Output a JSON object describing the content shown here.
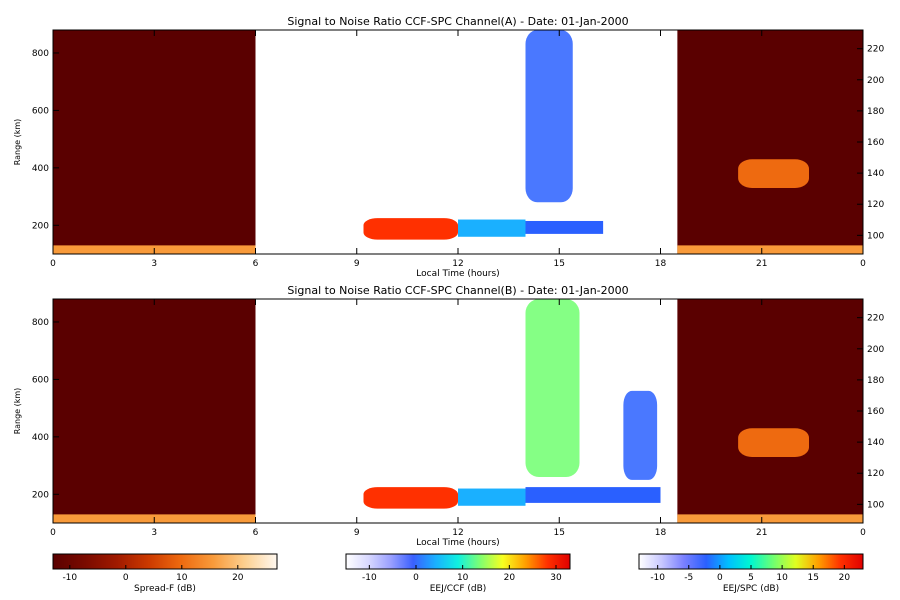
{
  "colors": {
    "spread_f": [
      "#5a0000",
      "#7a0a00",
      "#a01a00",
      "#cc3a00",
      "#ee6a10",
      "#f89a3a",
      "#fcd090",
      "#fff8f0"
    ],
    "eej_ccf": [
      "#ffffff",
      "#d8d8ff",
      "#9aa0ff",
      "#3a60ff",
      "#1ab0ff",
      "#10f0e0",
      "#80ff70",
      "#f8ff20",
      "#ffa000",
      "#ff3000",
      "#e00000"
    ],
    "eej_spc": [
      "#ffffff",
      "#c8c8ff",
      "#7a80ff",
      "#2a60ff",
      "#00c0ff",
      "#00f8d0",
      "#70ff70",
      "#e0ff20",
      "#ffa000",
      "#ff3000",
      "#e00000"
    ],
    "axis": "#000000"
  },
  "chart_data": [
    {
      "type": "heatmap",
      "title": "Signal to Noise Ratio CCF-SPC Channel(A) - Date: 01-Jan-2000",
      "xlabel": "Local Time (hours)",
      "ylabel": "Range (km)",
      "x_ticks": [
        "0",
        "3",
        "6",
        "9",
        "12",
        "15",
        "18",
        "21",
        "0"
      ],
      "y_ticks_left": [
        "200",
        "400",
        "600",
        "800"
      ],
      "y_ticks_right": [
        "100",
        "120",
        "140",
        "160",
        "180",
        "200",
        "220"
      ],
      "xlim": [
        0,
        24
      ],
      "ylim_left": [
        100,
        880
      ],
      "ylim_right": [
        88,
        232
      ],
      "regions": [
        {
          "name": "Spread-F night",
          "x": [
            0,
            6
          ],
          "range_km": [
            100,
            880
          ],
          "background_db": -13
        },
        {
          "name": "Spread-F night",
          "x": [
            18.5,
            24
          ],
          "range_km": [
            100,
            880
          ],
          "background_db": -13
        },
        {
          "name": "E-layer echo",
          "x": [
            0,
            6
          ],
          "range_km": [
            100,
            130
          ],
          "value_db": 18
        },
        {
          "name": "E-layer echo",
          "x": [
            18.5,
            24
          ],
          "range_km": [
            100,
            130
          ],
          "value_db": 18
        },
        {
          "name": "Spread-F patch",
          "x": [
            20.3,
            22.4
          ],
          "range_km": [
            330,
            430
          ],
          "value_db": 12
        },
        {
          "name": "EEJ/CCF strong echo",
          "x": [
            9.2,
            12
          ],
          "range_km": [
            150,
            225
          ],
          "value_db": 30
        },
        {
          "name": "EEJ/CCF echo",
          "x": [
            12,
            14
          ],
          "range_km": [
            160,
            220
          ],
          "value_db": 3
        },
        {
          "name": "EEJ/SPC plume",
          "x": [
            14,
            15.4
          ],
          "range_km": [
            280,
            880
          ],
          "value_db": -2
        },
        {
          "name": "EEJ/SPC band",
          "x": [
            14,
            16.3
          ],
          "range_km": [
            170,
            215
          ],
          "value_db": -3
        }
      ]
    },
    {
      "type": "heatmap",
      "title": "Signal to Noise Ratio CCF-SPC Channel(B) - Date: 01-Jan-2000",
      "xlabel": "Local Time (hours)",
      "ylabel": "Range (km)",
      "x_ticks": [
        "0",
        "3",
        "6",
        "9",
        "12",
        "15",
        "18",
        "21",
        "0"
      ],
      "y_ticks_left": [
        "200",
        "400",
        "600",
        "800"
      ],
      "y_ticks_right": [
        "100",
        "120",
        "140",
        "160",
        "180",
        "200",
        "220"
      ],
      "xlim": [
        0,
        24
      ],
      "ylim_left": [
        100,
        880
      ],
      "ylim_right": [
        88,
        232
      ],
      "regions": [
        {
          "name": "Spread-F night",
          "x": [
            0,
            6
          ],
          "range_km": [
            100,
            880
          ],
          "background_db": -13
        },
        {
          "name": "Spread-F night",
          "x": [
            18.5,
            24
          ],
          "range_km": [
            100,
            880
          ],
          "background_db": -13
        },
        {
          "name": "E-layer echo",
          "x": [
            0,
            6
          ],
          "range_km": [
            100,
            130
          ],
          "value_db": 18
        },
        {
          "name": "E-layer echo",
          "x": [
            18.5,
            24
          ],
          "range_km": [
            100,
            130
          ],
          "value_db": 18
        },
        {
          "name": "Spread-F patch",
          "x": [
            20.3,
            22.4
          ],
          "range_km": [
            330,
            430
          ],
          "value_db": 12
        },
        {
          "name": "EEJ/CCF strong echo",
          "x": [
            9.2,
            12
          ],
          "range_km": [
            150,
            225
          ],
          "value_db": 30
        },
        {
          "name": "EEJ/CCF echo",
          "x": [
            12,
            14
          ],
          "range_km": [
            160,
            220
          ],
          "value_db": 3
        },
        {
          "name": "EEJ/SPC plume",
          "x": [
            14,
            15.6
          ],
          "range_km": [
            260,
            880
          ],
          "value_db": 8
        },
        {
          "name": "EEJ/SPC bubble",
          "x": [
            16.9,
            17.9
          ],
          "range_km": [
            250,
            560
          ],
          "value_db": -3
        },
        {
          "name": "EEJ/SPC band",
          "x": [
            14,
            18
          ],
          "range_km": [
            170,
            225
          ],
          "value_db": -4
        }
      ]
    }
  ],
  "colorbars": [
    {
      "label": "Spread-F (dB)",
      "ticks": [
        "-10",
        "0",
        "10",
        "20"
      ],
      "range": [
        -13,
        27
      ],
      "tick_values": [
        -10,
        0,
        10,
        20
      ]
    },
    {
      "label": "EEJ/CCF (dB)",
      "ticks": [
        "-10",
        "0",
        "10",
        "20",
        "30"
      ],
      "range": [
        -15,
        33
      ],
      "tick_values": [
        -10,
        0,
        10,
        20,
        30
      ]
    },
    {
      "label": "EEJ/SPC (dB)",
      "ticks": [
        "-10",
        "-5",
        "0",
        "5",
        "10",
        "15",
        "20"
      ],
      "range": [
        -13,
        23
      ],
      "tick_values": [
        -10,
        -5,
        0,
        5,
        10,
        15,
        20
      ]
    }
  ]
}
